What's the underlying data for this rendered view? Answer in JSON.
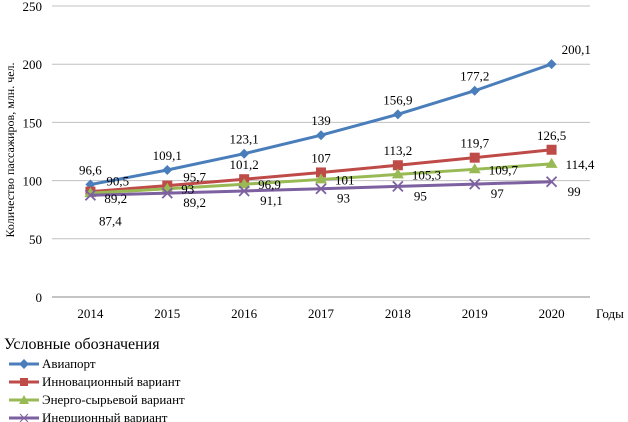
{
  "chart_data": {
    "type": "line",
    "ylabel": "Количество пассажиров, млн. чел.",
    "xlabel": "Годы",
    "categories": [
      "2014",
      "2015",
      "2016",
      "2017",
      "2018",
      "2019",
      "2020"
    ],
    "ylim": [
      0,
      250
    ],
    "yticks": [
      "0",
      "50",
      "100",
      "150",
      "200",
      "250"
    ],
    "grid": true,
    "legend_title": "Условные обозначения",
    "legend_position": "bottom-left",
    "series": [
      {
        "name": "Авиапорт",
        "color": "#4a7ebb",
        "marker": "diamond",
        "values": [
          96.6,
          109.1,
          123.1,
          139,
          156.9,
          177.2,
          200.1
        ],
        "labels": [
          "96,6",
          "109,1",
          "123,1",
          "139",
          "156,9",
          "177,2",
          "200,1"
        ]
      },
      {
        "name": "Инновационный вариант",
        "color": "#be4b48",
        "marker": "square",
        "values": [
          90.5,
          95.7,
          101.2,
          107,
          113.2,
          119.7,
          126.5
        ],
        "labels": [
          "90,5",
          "95,7",
          "101,2",
          "107",
          "113,2",
          "119,7",
          "126,5"
        ]
      },
      {
        "name": "Энерго-сырьевой вариант",
        "color": "#98b954",
        "marker": "triangle",
        "values": [
          89.2,
          93,
          96.9,
          101,
          105.3,
          109.7,
          114.4
        ],
        "labels": [
          "89,2",
          "93",
          "96,9",
          "101",
          "105,3",
          "109,7",
          "114,4"
        ]
      },
      {
        "name": "Инерционный вариант",
        "color": "#7d60a0",
        "marker": "x",
        "values": [
          87.4,
          89.2,
          91.1,
          93,
          95,
          97,
          99
        ],
        "labels": [
          "87,4",
          "89,2",
          "91,1",
          "93",
          "95",
          "97",
          "99"
        ]
      }
    ]
  }
}
